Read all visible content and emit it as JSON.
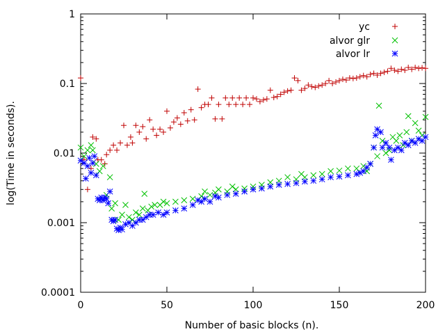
{
  "chart_data": {
    "type": "scatter",
    "title": "",
    "xlabel": "Number of basic blocks (n).",
    "ylabel": "log(Time in seconds).",
    "xlim": [
      0,
      200
    ],
    "ylim": [
      0.0001,
      1
    ],
    "yscale": "log",
    "grid": false,
    "legend": "top-right",
    "x_ticks": [
      "0",
      "50",
      "100",
      "150",
      "200"
    ],
    "y_ticks": [
      "0.0001",
      "0.001",
      "0.01",
      "0.1",
      "1"
    ],
    "series": [
      {
        "name": "yc",
        "color": "#c00000",
        "marker": "plus",
        "points": [
          [
            0,
            0.12
          ],
          [
            2,
            0.008
          ],
          [
            4,
            0.003
          ],
          [
            6,
            0.006
          ],
          [
            7,
            0.017
          ],
          [
            9,
            0.016
          ],
          [
            10,
            0.008
          ],
          [
            12,
            0.008
          ],
          [
            14,
            0.007
          ],
          [
            15,
            0.0095
          ],
          [
            17,
            0.011
          ],
          [
            19,
            0.013
          ],
          [
            21,
            0.011
          ],
          [
            23,
            0.014
          ],
          [
            25,
            0.025
          ],
          [
            27,
            0.013
          ],
          [
            29,
            0.017
          ],
          [
            30,
            0.014
          ],
          [
            32,
            0.025
          ],
          [
            34,
            0.02
          ],
          [
            36,
            0.024
          ],
          [
            38,
            0.016
          ],
          [
            40,
            0.03
          ],
          [
            42,
            0.022
          ],
          [
            44,
            0.018
          ],
          [
            46,
            0.022
          ],
          [
            48,
            0.02
          ],
          [
            50,
            0.04
          ],
          [
            52,
            0.023
          ],
          [
            54,
            0.028
          ],
          [
            56,
            0.032
          ],
          [
            58,
            0.026
          ],
          [
            60,
            0.038
          ],
          [
            62,
            0.029
          ],
          [
            64,
            0.042
          ],
          [
            66,
            0.03
          ],
          [
            68,
            0.083
          ],
          [
            70,
            0.045
          ],
          [
            72,
            0.05
          ],
          [
            74,
            0.05
          ],
          [
            76,
            0.062
          ],
          [
            78,
            0.031
          ],
          [
            80,
            0.05
          ],
          [
            82,
            0.031
          ],
          [
            84,
            0.062
          ],
          [
            86,
            0.05
          ],
          [
            88,
            0.062
          ],
          [
            90,
            0.05
          ],
          [
            92,
            0.062
          ],
          [
            94,
            0.05
          ],
          [
            96,
            0.062
          ],
          [
            98,
            0.05
          ],
          [
            100,
            0.062
          ],
          [
            102,
            0.06
          ],
          [
            104,
            0.055
          ],
          [
            106,
            0.058
          ],
          [
            108,
            0.06
          ],
          [
            110,
            0.08
          ],
          [
            112,
            0.063
          ],
          [
            114,
            0.065
          ],
          [
            116,
            0.07
          ],
          [
            118,
            0.075
          ],
          [
            120,
            0.078
          ],
          [
            122,
            0.08
          ],
          [
            124,
            0.12
          ],
          [
            126,
            0.11
          ],
          [
            128,
            0.08
          ],
          [
            130,
            0.085
          ],
          [
            132,
            0.095
          ],
          [
            134,
            0.09
          ],
          [
            136,
            0.088
          ],
          [
            138,
            0.092
          ],
          [
            140,
            0.095
          ],
          [
            142,
            0.1
          ],
          [
            144,
            0.11
          ],
          [
            146,
            0.1
          ],
          [
            148,
            0.105
          ],
          [
            150,
            0.11
          ],
          [
            152,
            0.115
          ],
          [
            154,
            0.112
          ],
          [
            156,
            0.12
          ],
          [
            158,
            0.118
          ],
          [
            160,
            0.12
          ],
          [
            162,
            0.125
          ],
          [
            164,
            0.13
          ],
          [
            166,
            0.125
          ],
          [
            168,
            0.135
          ],
          [
            170,
            0.14
          ],
          [
            172,
            0.132
          ],
          [
            174,
            0.14
          ],
          [
            176,
            0.145
          ],
          [
            178,
            0.15
          ],
          [
            180,
            0.165
          ],
          [
            182,
            0.155
          ],
          [
            184,
            0.15
          ],
          [
            186,
            0.16
          ],
          [
            188,
            0.155
          ],
          [
            190,
            0.17
          ],
          [
            192,
            0.16
          ],
          [
            194,
            0.17
          ],
          [
            196,
            0.165
          ],
          [
            198,
            0.168
          ],
          [
            200,
            0.165
          ]
        ]
      },
      {
        "name": "alvor glr",
        "color": "#00c000",
        "marker": "cross",
        "points": [
          [
            0,
            0.012
          ],
          [
            2,
            0.009
          ],
          [
            4,
            0.011
          ],
          [
            6,
            0.013
          ],
          [
            7,
            0.011
          ],
          [
            9,
            0.007
          ],
          [
            11,
            0.0055
          ],
          [
            13,
            0.0065
          ],
          [
            15,
            0.0025
          ],
          [
            17,
            0.0045
          ],
          [
            18,
            0.0016
          ],
          [
            20,
            0.0019
          ],
          [
            22,
            0.0011
          ],
          [
            24,
            0.0013
          ],
          [
            26,
            0.0018
          ],
          [
            28,
            0.0012
          ],
          [
            30,
            0.0011
          ],
          [
            32,
            0.0014
          ],
          [
            34,
            0.0013
          ],
          [
            36,
            0.0016
          ],
          [
            37,
            0.0026
          ],
          [
            39,
            0.0015
          ],
          [
            41,
            0.0017
          ],
          [
            43,
            0.0018
          ],
          [
            46,
            0.0018
          ],
          [
            48,
            0.002
          ],
          [
            50,
            0.0019
          ],
          [
            55,
            0.002
          ],
          [
            60,
            0.0021
          ],
          [
            65,
            0.0022
          ],
          [
            70,
            0.0024
          ],
          [
            72,
            0.0028
          ],
          [
            75,
            0.0025
          ],
          [
            78,
            0.0027
          ],
          [
            80,
            0.003
          ],
          [
            85,
            0.0028
          ],
          [
            88,
            0.0033
          ],
          [
            90,
            0.003
          ],
          [
            95,
            0.0031
          ],
          [
            100,
            0.0033
          ],
          [
            105,
            0.0035
          ],
          [
            110,
            0.0038
          ],
          [
            115,
            0.004
          ],
          [
            120,
            0.0045
          ],
          [
            125,
            0.0042
          ],
          [
            128,
            0.005
          ],
          [
            130,
            0.0045
          ],
          [
            135,
            0.0048
          ],
          [
            140,
            0.005
          ],
          [
            145,
            0.0055
          ],
          [
            150,
            0.0056
          ],
          [
            155,
            0.006
          ],
          [
            160,
            0.006
          ],
          [
            164,
            0.0065
          ],
          [
            166,
            0.0055
          ],
          [
            168,
            0.007
          ],
          [
            170,
            0.012
          ],
          [
            172,
            0.009
          ],
          [
            173,
            0.048
          ],
          [
            175,
            0.015
          ],
          [
            177,
            0.01
          ],
          [
            179,
            0.011
          ],
          [
            181,
            0.017
          ],
          [
            183,
            0.015
          ],
          [
            185,
            0.018
          ],
          [
            187,
            0.013
          ],
          [
            189,
            0.02
          ],
          [
            190,
            0.034
          ],
          [
            192,
            0.015
          ],
          [
            194,
            0.027
          ],
          [
            196,
            0.021
          ],
          [
            198,
            0.018
          ],
          [
            200,
            0.033
          ]
        ]
      },
      {
        "name": "alvor lr",
        "color": "#0000ff",
        "marker": "star",
        "points": [
          [
            0,
            0.0078
          ],
          [
            2,
            0.0072
          ],
          [
            3,
            0.0043
          ],
          [
            4,
            0.0065
          ],
          [
            5,
            0.0085
          ],
          [
            6,
            0.0052
          ],
          [
            7,
            0.0072
          ],
          [
            8,
            0.009
          ],
          [
            9,
            0.0048
          ],
          [
            10,
            0.0022
          ],
          [
            11,
            0.0021
          ],
          [
            12,
            0.0023
          ],
          [
            13,
            0.0021
          ],
          [
            14,
            0.0023
          ],
          [
            15,
            0.0022
          ],
          [
            16,
            0.0019
          ],
          [
            17,
            0.0028
          ],
          [
            18,
            0.0011
          ],
          [
            19,
            0.00105
          ],
          [
            20,
            0.0011
          ],
          [
            21,
            0.00082
          ],
          [
            22,
            0.00078
          ],
          [
            23,
            0.00085
          ],
          [
            24,
            0.0008
          ],
          [
            26,
            0.00095
          ],
          [
            28,
            0.001
          ],
          [
            30,
            0.0009
          ],
          [
            32,
            0.001
          ],
          [
            34,
            0.0011
          ],
          [
            36,
            0.0011
          ],
          [
            38,
            0.0012
          ],
          [
            40,
            0.0013
          ],
          [
            42,
            0.0013
          ],
          [
            45,
            0.0014
          ],
          [
            48,
            0.0013
          ],
          [
            50,
            0.0014
          ],
          [
            55,
            0.0015
          ],
          [
            60,
            0.0016
          ],
          [
            65,
            0.0018
          ],
          [
            68,
            0.0021
          ],
          [
            70,
            0.002
          ],
          [
            72,
            0.0022
          ],
          [
            75,
            0.002
          ],
          [
            78,
            0.0024
          ],
          [
            80,
            0.0023
          ],
          [
            85,
            0.0025
          ],
          [
            90,
            0.0026
          ],
          [
            95,
            0.0028
          ],
          [
            100,
            0.003
          ],
          [
            105,
            0.0031
          ],
          [
            110,
            0.0033
          ],
          [
            115,
            0.0035
          ],
          [
            120,
            0.0036
          ],
          [
            125,
            0.0037
          ],
          [
            130,
            0.0039
          ],
          [
            135,
            0.004
          ],
          [
            140,
            0.0042
          ],
          [
            145,
            0.0045
          ],
          [
            150,
            0.0046
          ],
          [
            155,
            0.0048
          ],
          [
            160,
            0.005
          ],
          [
            162,
            0.0052
          ],
          [
            164,
            0.0055
          ],
          [
            166,
            0.0062
          ],
          [
            168,
            0.007
          ],
          [
            170,
            0.012
          ],
          [
            171,
            0.018
          ],
          [
            172,
            0.022
          ],
          [
            174,
            0.02
          ],
          [
            175,
            0.012
          ],
          [
            177,
            0.014
          ],
          [
            179,
            0.012
          ],
          [
            180,
            0.008
          ],
          [
            182,
            0.011
          ],
          [
            184,
            0.012
          ],
          [
            186,
            0.011
          ],
          [
            188,
            0.014
          ],
          [
            190,
            0.013
          ],
          [
            192,
            0.015
          ],
          [
            194,
            0.014
          ],
          [
            196,
            0.016
          ],
          [
            198,
            0.015
          ],
          [
            200,
            0.017
          ]
        ]
      }
    ]
  }
}
